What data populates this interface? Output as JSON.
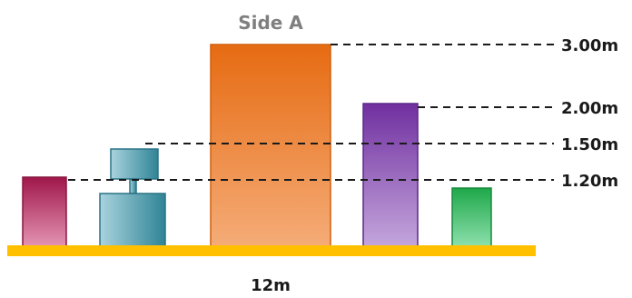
{
  "title": "Side A",
  "width_label": "12m",
  "levels": [
    {
      "label": "3.00m",
      "value": 3.0
    },
    {
      "label": "2.00m",
      "value": 2.0
    },
    {
      "label": "1.50m",
      "value": 1.5
    },
    {
      "label": "1.20m",
      "value": 1.2
    }
  ],
  "colors": {
    "ground": "#ffc000",
    "pink_box": [
      "#a0174a",
      "#e495b4"
    ],
    "teal_box": [
      "#2f8496",
      "#a9d3de"
    ],
    "orange_box": [
      "#e66b12",
      "#f5ac78"
    ],
    "purple_box": [
      "#7030a0",
      "#c4a6dc"
    ],
    "green_box": [
      "#1fa84a",
      "#8ee0ad"
    ]
  }
}
